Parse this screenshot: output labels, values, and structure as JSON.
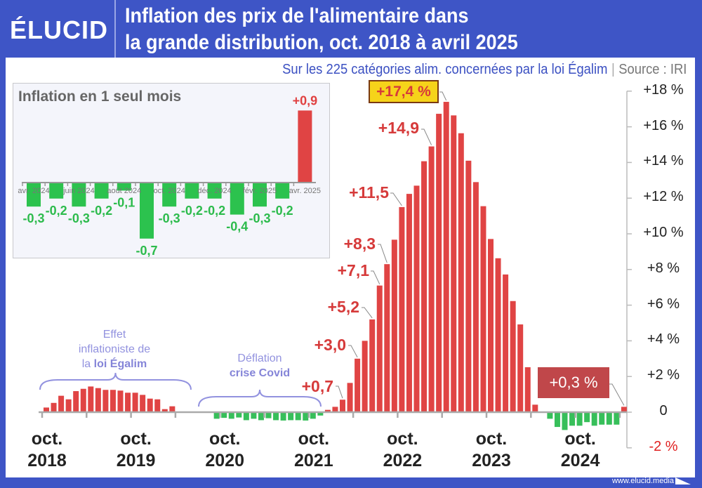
{
  "header": {
    "logo": "ÉLUCID",
    "title_line1": "Inflation des prix de l'alimentaire dans",
    "title_line2": "la grande distribution, oct. 2018 à avril 2025",
    "subtitle": "Sur les 225 catégories alim. concernées par la loi Égalim",
    "separator": "|",
    "source": "Source : IRI"
  },
  "footer": {
    "url": "www.elucid.media"
  },
  "colors": {
    "frame": "#3e55c6",
    "positive": "#e04444",
    "negative": "#37bf5a",
    "annotation": "#9292df",
    "highlight": "#f6d31a"
  },
  "annotations": {
    "egalim_line1": "Effet",
    "egalim_line2": "inflationiste de",
    "egalim_line3_prefix": "la ",
    "egalim_line3_bold": "loi Égalim",
    "covid_line1": "Déflation",
    "covid_line2": "crise Covid"
  },
  "chart_data": [
    {
      "type": "bar",
      "title": "Inflation des prix de l'alimentaire dans la grande distribution, oct. 2018 à avril 2025",
      "ylim": [
        -2,
        18
      ],
      "yticks": [
        "+18 %",
        "+16 %",
        "+14 %",
        "+12 %",
        "+10 %",
        "+8 %",
        "+6 %",
        "+4 %",
        "+2 %",
        "0",
        "-2 %"
      ],
      "xtick_labels": [
        {
          "month": "oct.",
          "year": "2018"
        },
        {
          "month": "oct.",
          "year": "2019"
        },
        {
          "month": "oct.",
          "year": "2020"
        },
        {
          "month": "oct.",
          "year": "2021"
        },
        {
          "month": "oct.",
          "year": "2022"
        },
        {
          "month": "oct.",
          "year": "2023"
        },
        {
          "month": "oct.",
          "year": "2024"
        }
      ],
      "categories": [
        "oct. 2018",
        "nov. 2018",
        "déc. 2018",
        "janv. 2019",
        "févr. 2019",
        "mars 2019",
        "avr. 2019",
        "mai 2019",
        "juin 2019",
        "juil. 2019",
        "août 2019",
        "sept. 2019",
        "oct. 2019",
        "nov. 2019",
        "déc. 2019",
        "janv. 2020",
        "févr. 2020",
        "mars 2020",
        "avr. 2020",
        "mai 2020",
        "juin 2020",
        "juil. 2020",
        "août 2020",
        "sept. 2020",
        "oct. 2020",
        "nov. 2020",
        "déc. 2020",
        "janv. 2021",
        "févr. 2021",
        "mars 2021",
        "avr. 2021",
        "mai 2021",
        "juin 2021",
        "juil. 2021",
        "août 2021",
        "sept. 2021",
        "oct. 2021",
        "nov. 2021",
        "déc. 2021",
        "janv. 2022",
        "févr. 2022",
        "mars 2022",
        "avr. 2022",
        "mai 2022",
        "juin 2022",
        "juil. 2022",
        "août 2022",
        "sept. 2022",
        "oct. 2022",
        "nov. 2022",
        "déc. 2022",
        "janv. 2023",
        "févr. 2023",
        "mars 2023",
        "avr. 2023",
        "mai 2023",
        "juin 2023",
        "juil. 2023",
        "août 2023",
        "sept. 2023",
        "oct. 2023",
        "nov. 2023",
        "déc. 2023",
        "janv. 2024",
        "févr. 2024",
        "mars 2024",
        "avr. 2024",
        "mai 2024",
        "juin 2024",
        "juil. 2024",
        "août 2024",
        "sept. 2024",
        "oct. 2024",
        "nov. 2024",
        "déc. 2024",
        "janv. 2025",
        "févr. 2025",
        "mars 2025",
        "avr. 2025"
      ],
      "values": [
        0.26,
        0.52,
        0.92,
        0.72,
        1.18,
        1.31,
        1.44,
        1.35,
        1.25,
        1.25,
        1.21,
        1.09,
        1.09,
        0.97,
        0.76,
        0.72,
        0.17,
        0.33,
        0,
        0,
        0,
        0,
        0,
        -0.33,
        -0.28,
        -0.33,
        -0.26,
        -0.41,
        -0.33,
        -0.41,
        -0.3,
        -0.41,
        -0.43,
        -0.41,
        -0.41,
        -0.43,
        -0.33,
        -0.15,
        0.13,
        0.3,
        0.7,
        1.64,
        3.0,
        4.0,
        5.2,
        7.1,
        8.3,
        9.67,
        11.5,
        12.24,
        12.7,
        14.07,
        14.9,
        16.73,
        17.4,
        16.64,
        15.64,
        14.1,
        12.9,
        11.55,
        9.71,
        8.63,
        7.72,
        6.23,
        4.92,
        2.52,
        0.42,
        0,
        -0.33,
        -0.79,
        -0.96,
        -0.72,
        -0.72,
        -0.52,
        -0.72,
        -0.66,
        -0.66,
        -0.66,
        0.3
      ],
      "data_labels": [
        {
          "category": "févr. 2022",
          "text": "+0,7"
        },
        {
          "category": "avr. 2022",
          "text": "+3,0"
        },
        {
          "category": "juin 2022",
          "text": "+5,2"
        },
        {
          "category": "juil. 2022",
          "text": "+7,1"
        },
        {
          "category": "août 2022",
          "text": "+8,3"
        },
        {
          "category": "oct. 2022",
          "text": "+11,5"
        },
        {
          "category": "févr. 2023",
          "text": "+14,9"
        },
        {
          "category": "avr. 2023",
          "text": "+17,4 %"
        },
        {
          "category": "avr. 2025",
          "text": "+0,3 %"
        }
      ]
    },
    {
      "type": "bar",
      "title": "Inflation en 1 seul mois",
      "categories": [
        "avr. 2024",
        "mai 2024",
        "juin 2024",
        "juil. 2024",
        "août 2024",
        "sept. 2024",
        "oct. 2024",
        "nov. 2024",
        "déc. 2024",
        "janv. 2025",
        "févr. 2025",
        "mars 2025",
        "avr. 2025"
      ],
      "tick_labels": [
        "avr. 2024",
        "juin 2024",
        "août 2024",
        "oct. 2024",
        "déc. 2024",
        "févr. 2025",
        "avr. 2025"
      ],
      "values": [
        -0.3,
        -0.2,
        -0.3,
        -0.2,
        -0.1,
        -0.7,
        -0.3,
        -0.2,
        -0.2,
        -0.4,
        -0.3,
        -0.2,
        0.9
      ],
      "data_labels": [
        "-0,3",
        "-0,2",
        "-0,3",
        "-0,2",
        "-0,1",
        "-0,7",
        "-0,3",
        "-0,2",
        "-0,2",
        "-0,4",
        "-0,3",
        "-0,2",
        "+0,9"
      ]
    }
  ]
}
